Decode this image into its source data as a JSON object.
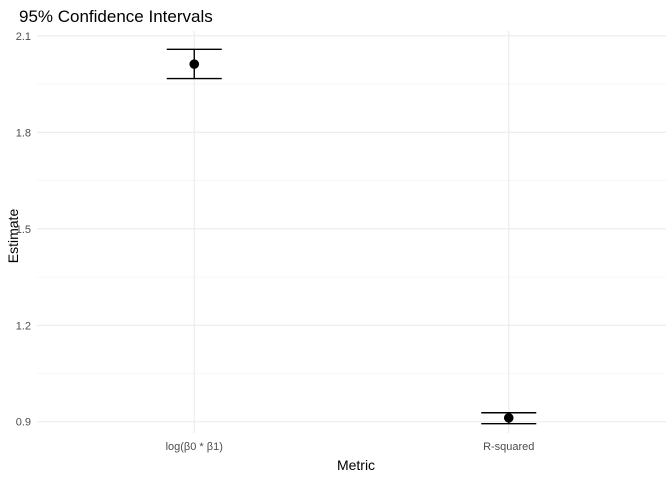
{
  "chart_data": {
    "type": "errorbar",
    "title": "95% Confidence Intervals",
    "xlabel": "Metric",
    "ylabel": "Estimate",
    "categories": [
      "log(β0 * β1)",
      "R-squared"
    ],
    "estimates": [
      2.012,
      0.912
    ],
    "lower": [
      1.967,
      0.894
    ],
    "upper": [
      2.058,
      0.928
    ],
    "ylim": [
      0.865,
      2.115
    ],
    "yticks": [
      0.9,
      1.2,
      1.5,
      1.8,
      2.1
    ],
    "ytick_labels": [
      "0.9",
      "1.2",
      "1.5",
      "1.8",
      "2.1"
    ],
    "grid": true,
    "colors": {
      "point": "#000000",
      "grid": "#ebebeb",
      "text": "#4d4d4d"
    }
  }
}
